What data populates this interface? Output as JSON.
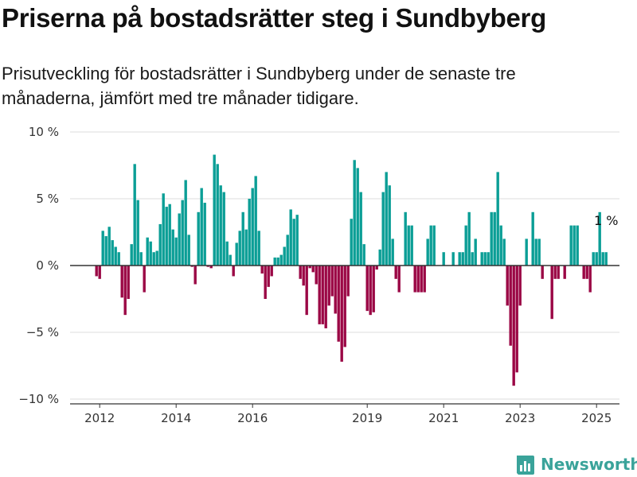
{
  "title": "Priserna på bostadsrätter steg i Sundbyberg",
  "subtitle": "Prisutveckling för bostadsrätter i Sundbyberg under de senaste tre månaderna, jämfört med tre månader tidigare.",
  "brand": {
    "name": "Newsworthy",
    "icon": "newsworthy-logo-icon"
  },
  "colors": {
    "positive": "#0b9e96",
    "negative": "#9b0745",
    "grid": "#dddddd",
    "zero_line": "#333333"
  },
  "chart_data": {
    "type": "bar",
    "ylim": [
      -10,
      10
    ],
    "grid": true,
    "y_ticks": [
      {
        "value": 10,
        "label": "10 %"
      },
      {
        "value": 5,
        "label": "5 %"
      },
      {
        "value": 0,
        "label": "0 %"
      },
      {
        "value": -5,
        "label": "−5 %"
      },
      {
        "value": -10,
        "label": "−10 %"
      }
    ],
    "x_ticks": [
      "2012",
      "2014",
      "2016",
      "2019",
      "2021",
      "2023",
      "2025"
    ],
    "x_tick_months": [
      "2012-01",
      "2014-01",
      "2016-01",
      "2019-01",
      "2021-01",
      "2023-01",
      "2025-01"
    ],
    "start_month": "2011-12",
    "values": [
      -0.8,
      -1.0,
      2.6,
      2.2,
      2.9,
      1.9,
      1.4,
      1.0,
      -2.4,
      -3.7,
      -2.5,
      1.6,
      7.6,
      4.9,
      1.0,
      -2.0,
      2.1,
      1.8,
      1.0,
      1.1,
      3.1,
      5.4,
      4.4,
      4.6,
      2.7,
      2.1,
      3.9,
      4.9,
      6.4,
      2.3,
      -0.1,
      -1.4,
      4.0,
      5.8,
      4.7,
      -0.1,
      -0.2,
      8.3,
      7.6,
      6.0,
      5.5,
      1.8,
      0.8,
      -0.8,
      1.7,
      2.6,
      4.0,
      2.7,
      5.0,
      5.8,
      6.7,
      2.6,
      -0.6,
      -2.5,
      -1.6,
      -0.8,
      0.6,
      0.6,
      0.8,
      1.4,
      2.3,
      4.2,
      3.5,
      3.8,
      -1.0,
      -1.5,
      -3.7,
      -0.2,
      -0.5,
      -1.4,
      -4.4,
      -4.4,
      -4.7,
      -3.0,
      -2.3,
      -3.6,
      -5.7,
      -7.2,
      -6.1,
      -2.3,
      3.5,
      7.9,
      7.3,
      5.5,
      1.6,
      -3.4,
      -3.7,
      -3.5,
      -0.3,
      1.2,
      5.5,
      7.0,
      6.0,
      2.0,
      -1.0,
      -2.0,
      0,
      4.0,
      3.0,
      3.0,
      -2.0,
      -2.0,
      -2.0,
      -2.0,
      2.0,
      3.0,
      3.0,
      0,
      0,
      1.0,
      0,
      0,
      1.0,
      0,
      1.0,
      1.0,
      3.0,
      4.0,
      1.0,
      2.0,
      0,
      1.0,
      1.0,
      1.0,
      4.0,
      4.0,
      7.0,
      3.0,
      2.0,
      -3.0,
      -6.0,
      -9.0,
      -8.0,
      -3.0,
      0,
      2.0,
      0,
      4.0,
      2.0,
      2.0,
      -1.0,
      0,
      0,
      -4.0,
      -1.0,
      -1.0,
      0,
      -1.0,
      0,
      3.0,
      3.0,
      3.0,
      0,
      -1.0,
      -1.0,
      -2.0,
      1.0,
      1.0,
      4.0,
      1.0,
      1.0
    ],
    "annotation": {
      "label": "1 %",
      "index": 160
    }
  }
}
